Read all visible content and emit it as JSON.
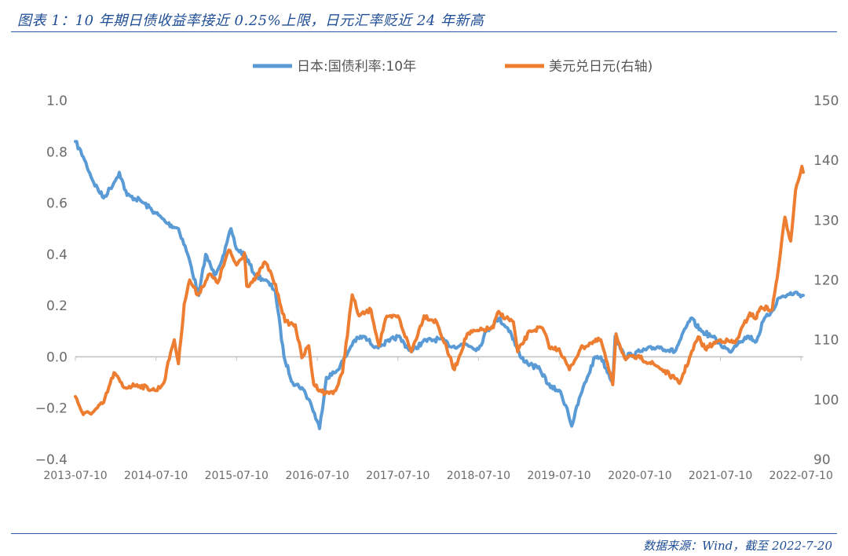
{
  "figure": {
    "title": "图表 1：10 年期日债收益率接近 0.25%上限，日元汇率贬近 24 年新高",
    "source": "数据来源：Wind，截至 2022-7-20"
  },
  "chart_data": {
    "type": "line",
    "legend_placement": "top-center",
    "grid": false,
    "x_range": [
      "2013-07-10",
      "2022-07-20"
    ],
    "x_tick_labels": [
      "2013-07-10",
      "2014-07-10",
      "2015-07-10",
      "2016-07-10",
      "2017-07-10",
      "2018-07-10",
      "2019-07-10",
      "2020-07-10",
      "2021-07-10",
      "2022-07-10"
    ],
    "y_left": {
      "range": [
        -0.4,
        1.0
      ],
      "tick_labels": [
        "1.0",
        "0.8",
        "0.6",
        "0.4",
        "0.2",
        "0.0",
        "−0.2",
        "−0.4"
      ]
    },
    "y_right": {
      "range": [
        90,
        150
      ],
      "tick_labels": [
        "150",
        "140",
        "130",
        "120",
        "110",
        "100",
        "90"
      ]
    },
    "series": [
      {
        "name": "日本:国债利率:10年",
        "axis": "left",
        "color": "#5b9bd5",
        "points": [
          [
            "2013-07-10",
            0.84
          ],
          [
            "2013-08-15",
            0.78
          ],
          [
            "2013-10-01",
            0.68
          ],
          [
            "2013-11-15",
            0.62
          ],
          [
            "2014-01-01",
            0.68
          ],
          [
            "2014-01-25",
            0.72
          ],
          [
            "2014-03-01",
            0.63
          ],
          [
            "2014-05-01",
            0.61
          ],
          [
            "2014-07-10",
            0.56
          ],
          [
            "2014-09-01",
            0.52
          ],
          [
            "2014-10-20",
            0.5
          ],
          [
            "2014-12-01",
            0.4
          ],
          [
            "2015-01-20",
            0.24
          ],
          [
            "2015-02-20",
            0.4
          ],
          [
            "2015-04-01",
            0.32
          ],
          [
            "2015-05-15",
            0.4
          ],
          [
            "2015-06-15",
            0.5
          ],
          [
            "2015-07-10",
            0.42
          ],
          [
            "2015-08-15",
            0.4
          ],
          [
            "2015-10-01",
            0.32
          ],
          [
            "2015-11-15",
            0.3
          ],
          [
            "2016-01-01",
            0.26
          ],
          [
            "2016-02-10",
            0.0
          ],
          [
            "2016-03-20",
            -0.1
          ],
          [
            "2016-05-01",
            -0.12
          ],
          [
            "2016-06-10",
            -0.18
          ],
          [
            "2016-07-20",
            -0.28
          ],
          [
            "2016-08-20",
            -0.08
          ],
          [
            "2016-10-01",
            -0.06
          ],
          [
            "2016-11-15",
            0.0
          ],
          [
            "2016-12-20",
            0.06
          ],
          [
            "2017-02-01",
            0.08
          ],
          [
            "2017-04-01",
            0.04
          ],
          [
            "2017-06-01",
            0.06
          ],
          [
            "2017-07-10",
            0.08
          ],
          [
            "2017-09-10",
            0.02
          ],
          [
            "2017-11-01",
            0.06
          ],
          [
            "2018-01-15",
            0.07
          ],
          [
            "2018-03-15",
            0.04
          ],
          [
            "2018-05-15",
            0.05
          ],
          [
            "2018-07-10",
            0.03
          ],
          [
            "2018-08-15",
            0.1
          ],
          [
            "2018-10-10",
            0.15
          ],
          [
            "2018-12-01",
            0.1
          ],
          [
            "2019-01-15",
            0.0
          ],
          [
            "2019-03-01",
            -0.03
          ],
          [
            "2019-04-15",
            -0.05
          ],
          [
            "2019-06-01",
            -0.12
          ],
          [
            "2019-07-10",
            -0.13
          ],
          [
            "2019-08-15",
            -0.2
          ],
          [
            "2019-09-05",
            -0.27
          ],
          [
            "2019-10-15",
            -0.15
          ],
          [
            "2019-11-15",
            -0.08
          ],
          [
            "2019-12-20",
            0.0
          ],
          [
            "2020-01-15",
            0.0
          ],
          [
            "2020-03-09",
            -0.1
          ],
          [
            "2020-03-20",
            0.08
          ],
          [
            "2020-05-01",
            0.0
          ],
          [
            "2020-07-10",
            0.02
          ],
          [
            "2020-10-01",
            0.04
          ],
          [
            "2020-12-15",
            0.02
          ],
          [
            "2021-02-25",
            0.15
          ],
          [
            "2021-04-15",
            0.1
          ],
          [
            "2021-06-01",
            0.08
          ],
          [
            "2021-07-10",
            0.05
          ],
          [
            "2021-08-20",
            0.02
          ],
          [
            "2021-10-01",
            0.06
          ],
          [
            "2021-11-15",
            0.08
          ],
          [
            "2021-12-20",
            0.06
          ],
          [
            "2022-01-20",
            0.14
          ],
          [
            "2022-03-01",
            0.18
          ],
          [
            "2022-04-01",
            0.23
          ],
          [
            "2022-06-10",
            0.25
          ],
          [
            "2022-07-20",
            0.24
          ]
        ]
      },
      {
        "name": "美元兑日元(右轴)",
        "axis": "right",
        "color": "#ed7d31",
        "points": [
          [
            "2013-07-10",
            100.5
          ],
          [
            "2013-08-15",
            97.5
          ],
          [
            "2013-10-01",
            98.0
          ],
          [
            "2013-11-15",
            99.5
          ],
          [
            "2014-01-01",
            104.5
          ],
          [
            "2014-02-15",
            102.0
          ],
          [
            "2014-04-15",
            102.5
          ],
          [
            "2014-07-10",
            101.5
          ],
          [
            "2014-08-15",
            102.8
          ],
          [
            "2014-09-15",
            108.0
          ],
          [
            "2014-10-01",
            110.0
          ],
          [
            "2014-10-20",
            106.0
          ],
          [
            "2014-11-15",
            116.0
          ],
          [
            "2014-12-10",
            120.0
          ],
          [
            "2015-01-15",
            117.5
          ],
          [
            "2015-03-10",
            121.0
          ],
          [
            "2015-04-15",
            119.5
          ],
          [
            "2015-06-05",
            125.0
          ],
          [
            "2015-07-10",
            122.5
          ],
          [
            "2015-08-15",
            124.5
          ],
          [
            "2015-08-25",
            119.0
          ],
          [
            "2015-10-01",
            120.0
          ],
          [
            "2015-11-15",
            123.0
          ],
          [
            "2015-12-15",
            121.0
          ],
          [
            "2016-01-15",
            117.5
          ],
          [
            "2016-02-15",
            113.0
          ],
          [
            "2016-04-01",
            112.5
          ],
          [
            "2016-05-01",
            107.0
          ],
          [
            "2016-06-01",
            109.0
          ],
          [
            "2016-06-24",
            102.5
          ],
          [
            "2016-08-15",
            101.0
          ],
          [
            "2016-10-01",
            101.5
          ],
          [
            "2016-11-01",
            104.5
          ],
          [
            "2016-12-15",
            117.5
          ],
          [
            "2017-01-15",
            114.0
          ],
          [
            "2017-03-10",
            115.0
          ],
          [
            "2017-04-15",
            109.0
          ],
          [
            "2017-05-15",
            113.5
          ],
          [
            "2017-07-10",
            114.0
          ],
          [
            "2017-09-08",
            108.0
          ],
          [
            "2017-11-06",
            114.0
          ],
          [
            "2018-01-01",
            113.0
          ],
          [
            "2018-03-23",
            105.0
          ],
          [
            "2018-05-20",
            111.0
          ],
          [
            "2018-07-10",
            111.5
          ],
          [
            "2018-09-15",
            112.0
          ],
          [
            "2018-10-04",
            114.5
          ],
          [
            "2018-12-15",
            113.0
          ],
          [
            "2019-01-03",
            108.0
          ],
          [
            "2019-03-01",
            111.5
          ],
          [
            "2019-04-25",
            112.0
          ],
          [
            "2019-06-01",
            108.5
          ],
          [
            "2019-07-10",
            108.5
          ],
          [
            "2019-08-26",
            105.0
          ],
          [
            "2019-10-15",
            108.5
          ],
          [
            "2019-12-01",
            109.5
          ],
          [
            "2020-01-15",
            110.0
          ],
          [
            "2020-03-09",
            102.5
          ],
          [
            "2020-03-24",
            111.0
          ],
          [
            "2020-05-01",
            107.0
          ],
          [
            "2020-07-10",
            107.0
          ],
          [
            "2020-10-01",
            105.5
          ],
          [
            "2020-12-15",
            103.5
          ],
          [
            "2021-01-05",
            102.7
          ],
          [
            "2021-03-31",
            110.5
          ],
          [
            "2021-05-01",
            108.5
          ],
          [
            "2021-07-10",
            110.0
          ],
          [
            "2021-09-15",
            109.5
          ],
          [
            "2021-11-20",
            114.5
          ],
          [
            "2021-12-15",
            113.5
          ],
          [
            "2022-01-10",
            115.5
          ],
          [
            "2022-03-01",
            115.0
          ],
          [
            "2022-03-30",
            122.0
          ],
          [
            "2022-04-28",
            130.5
          ],
          [
            "2022-05-24",
            126.5
          ],
          [
            "2022-06-15",
            135.0
          ],
          [
            "2022-07-14",
            139.0
          ],
          [
            "2022-07-20",
            138.0
          ]
        ]
      }
    ]
  }
}
